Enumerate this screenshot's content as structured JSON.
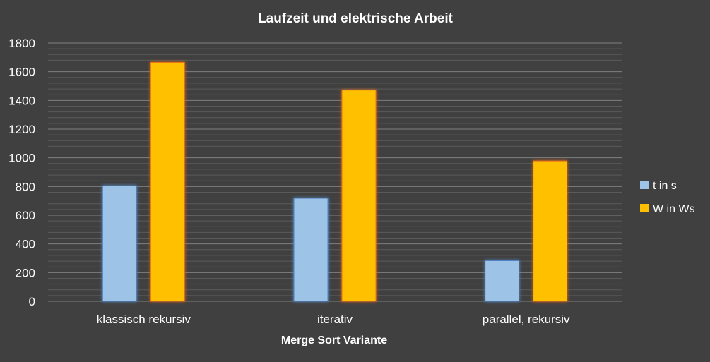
{
  "chart_data": {
    "type": "bar",
    "title": "Laufzeit und elektrische Arbeit",
    "xlabel": "Merge Sort Variante",
    "ylabel": "",
    "categories": [
      "klassisch rekursiv",
      "iterativ",
      "parallel, rekursiv"
    ],
    "series": [
      {
        "name": "t in s",
        "values": [
          805,
          718,
          283
        ],
        "color": "#9dc3e6"
      },
      {
        "name": "W in Ws",
        "values": [
          1665,
          1472,
          978
        ],
        "color": "#ffc000"
      }
    ],
    "ylim": [
      0,
      1800
    ],
    "yticks": [
      0,
      200,
      400,
      600,
      800,
      1000,
      1200,
      1400,
      1600,
      1800
    ],
    "minor_grid_step": 40,
    "grid": true,
    "legend": "right",
    "colors": {
      "background": "#404040",
      "major_grid": "#7f7f7f",
      "minor_grid": "#5a5a5a",
      "text": "#ffffff"
    }
  }
}
